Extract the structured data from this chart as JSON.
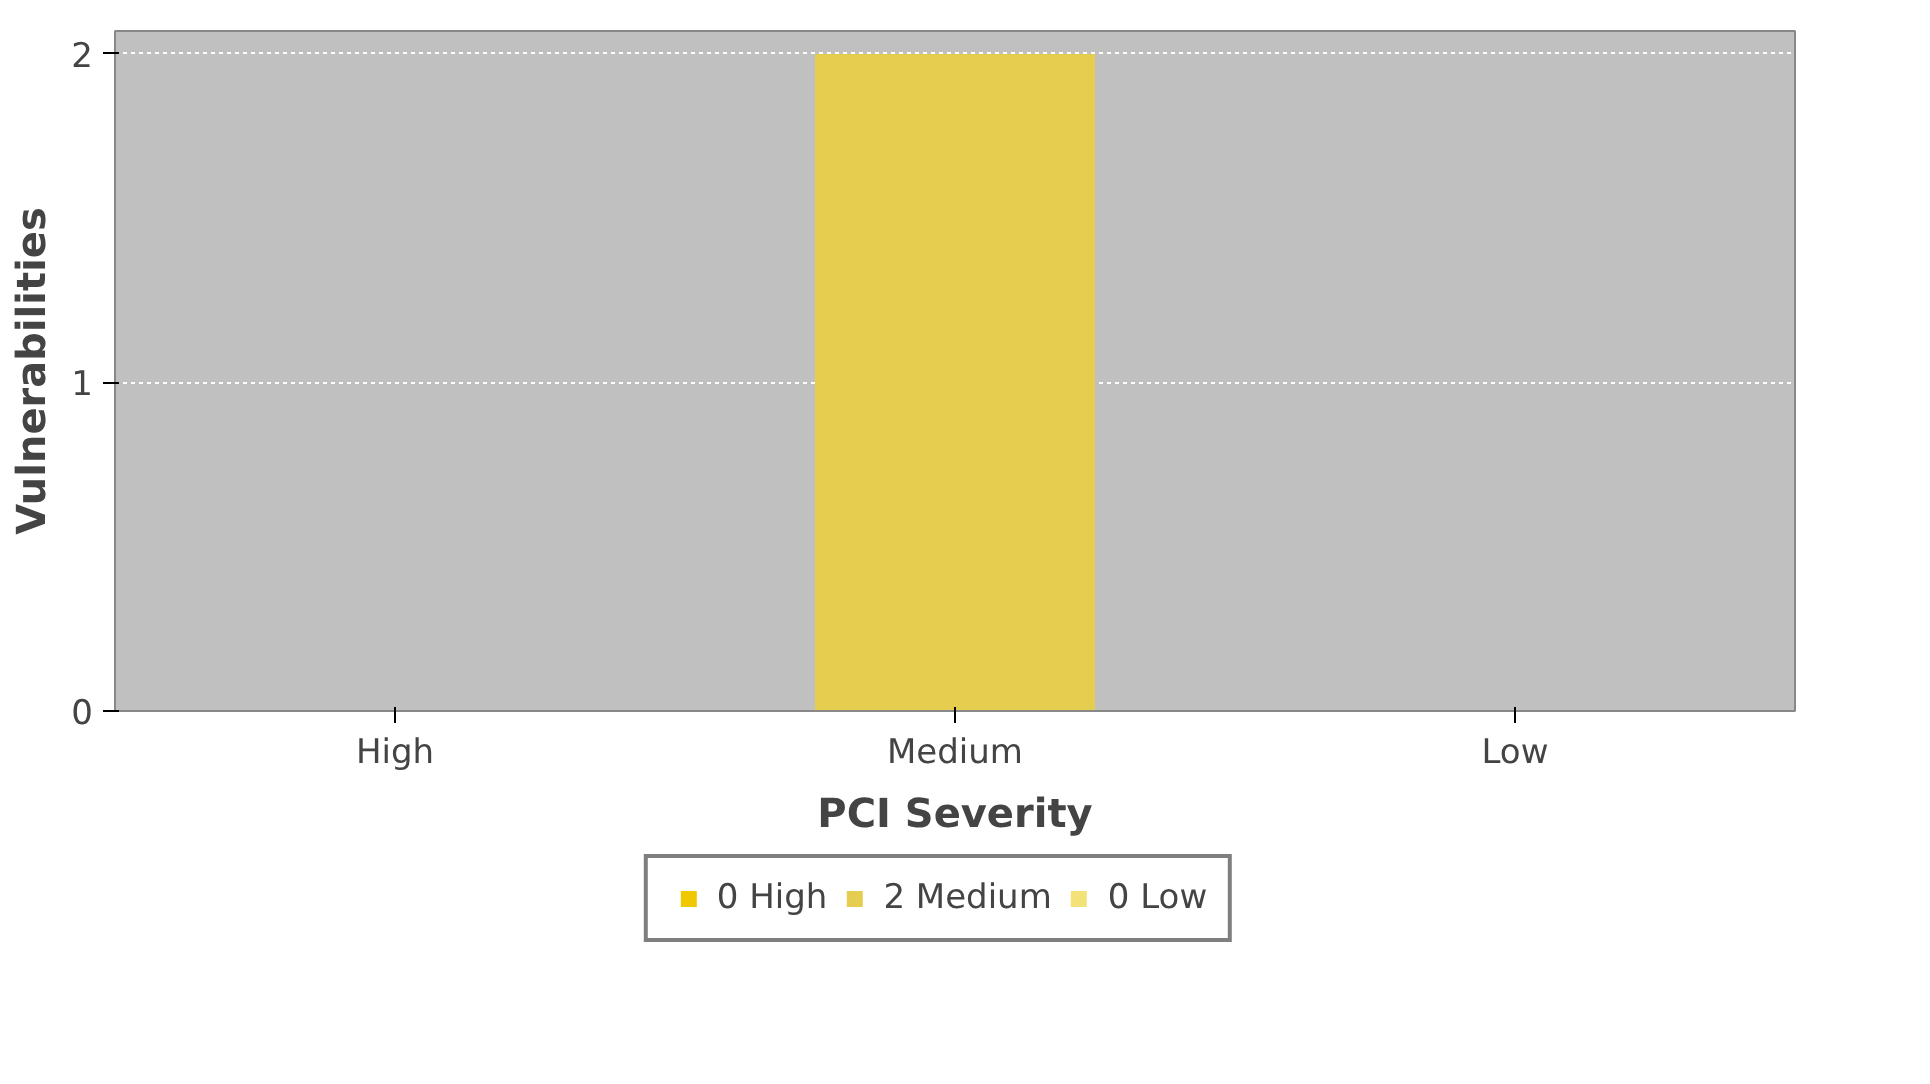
{
  "chart_data": {
    "type": "bar",
    "xlabel": "PCI Severity",
    "ylabel": "Vulnerabilities",
    "categories": [
      "High",
      "Medium",
      "Low"
    ],
    "series": [
      {
        "name": "0 High",
        "color": "#f0c800",
        "values": [
          0,
          null,
          null
        ]
      },
      {
        "name": "2 Medium",
        "color": "#e4cd4f",
        "values": [
          null,
          2,
          null
        ]
      },
      {
        "name": "0 Low",
        "color": "#f2e278",
        "values": [
          null,
          null,
          0
        ]
      }
    ],
    "ylim": [
      0,
      2.07
    ],
    "yticks": [
      0,
      1,
      2
    ],
    "grid": "y",
    "legend": "bottom"
  }
}
